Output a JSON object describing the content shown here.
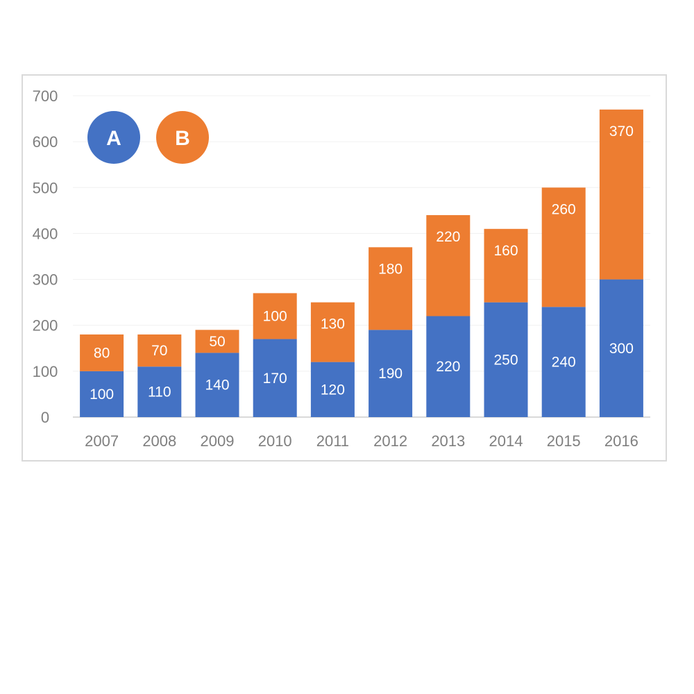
{
  "chart_data": {
    "type": "bar",
    "stacked": true,
    "title": "",
    "xlabel": "",
    "ylabel": "",
    "categories": [
      "2007",
      "2008",
      "2009",
      "2010",
      "2011",
      "2012",
      "2013",
      "2014",
      "2015",
      "2016"
    ],
    "series": [
      {
        "name": "A",
        "color": "#4472c4",
        "values": [
          100,
          110,
          140,
          170,
          120,
          190,
          220,
          250,
          240,
          300
        ]
      },
      {
        "name": "B",
        "color": "#ed7d31",
        "values": [
          80,
          70,
          50,
          100,
          130,
          180,
          220,
          160,
          260,
          370
        ]
      }
    ],
    "ylim": [
      0,
      700
    ],
    "yticks": [
      0,
      100,
      200,
      300,
      400,
      500,
      600,
      700
    ],
    "grid": true,
    "legend": "top-left",
    "data_labels": true
  },
  "colors": {
    "grid": "#f0f0f0",
    "axis": "#d9d9d9",
    "tick_text": "#7f7f7f",
    "label_text": "#ffffff"
  }
}
